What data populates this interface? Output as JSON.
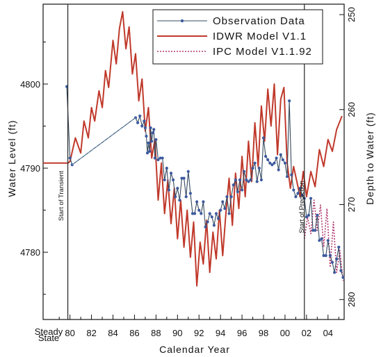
{
  "chart_data": {
    "type": "line",
    "xlabel": "Calendar Year",
    "ylabel": "Water Level (ft)",
    "y2label": "Depth to Water (ft)",
    "xlim": [
      1977.5,
      2005.5
    ],
    "ylim": [
      4772,
      4809.5
    ],
    "y2lim": [
      282.1,
      248.9
    ],
    "x_ticks": [
      {
        "value": 1977.5,
        "label": "Steady\nState"
      },
      {
        "value": 1980,
        "label": "80"
      },
      {
        "value": 1982,
        "label": "82"
      },
      {
        "value": 1984,
        "label": "84"
      },
      {
        "value": 1986,
        "label": "86"
      },
      {
        "value": 1988,
        "label": "88"
      },
      {
        "value": 1990,
        "label": "90"
      },
      {
        "value": 1992,
        "label": "92"
      },
      {
        "value": 1994,
        "label": "94"
      },
      {
        "value": 1996,
        "label": "96"
      },
      {
        "value": 1998,
        "label": "98"
      },
      {
        "value": 2000,
        "label": "00"
      },
      {
        "value": 2002,
        "label": "02"
      },
      {
        "value": 2004,
        "label": "04"
      }
    ],
    "y_ticks": [
      4780,
      4790,
      4800
    ],
    "y2_ticks": [
      250,
      260,
      270,
      280
    ],
    "annotations": [
      "Start of Transient",
      "Start of Prediction"
    ],
    "vertical_lines": [
      1979.8,
      2001.8
    ],
    "legend_position": "top-right",
    "series": [
      {
        "name": "IDWR Model V1.1",
        "color": "#c0392b",
        "style": "solid",
        "x": [
          1977.5,
          1979.8,
          1980.0,
          1980.5,
          1981.0,
          1981.3,
          1981.7,
          1982.0,
          1982.3,
          1982.7,
          1983.0,
          1983.3,
          1983.6,
          1984.0,
          1984.3,
          1984.6,
          1984.9,
          1985.2,
          1985.5,
          1985.8,
          1986.1,
          1986.4,
          1986.7,
          1987.0,
          1987.3,
          1987.6,
          1987.9,
          1988.2,
          1988.5,
          1988.8,
          1989.1,
          1989.4,
          1989.7,
          1990.0,
          1990.3,
          1990.6,
          1990.9,
          1991.2,
          1991.5,
          1991.8,
          1992.1,
          1992.4,
          1992.7,
          1993.0,
          1993.3,
          1993.6,
          1993.9,
          1994.2,
          1994.5,
          1994.8,
          1995.1,
          1995.4,
          1995.7,
          1996.0,
          1996.3,
          1996.6,
          1996.9,
          1997.2,
          1997.5,
          1997.8,
          1998.1,
          1998.4,
          1998.7,
          1999.0,
          1999.3,
          1999.6,
          1999.9,
          2000.2,
          2000.5,
          2000.8,
          2001.1,
          2001.4,
          2001.7,
          2002.0,
          2002.4,
          2002.8,
          2003.2,
          2003.6,
          2004.0,
          2004.4,
          2004.8,
          2005.3
        ],
        "y": [
          4790.6,
          4790.6,
          4790.8,
          4793.6,
          4791.8,
          4795.6,
          4793.6,
          4797.2,
          4795.6,
          4799.2,
          4797.2,
          4801.6,
          4799.6,
          4805.2,
          4802.4,
          4806.6,
          4808.6,
          4804.2,
          4806.8,
          4801.2,
          4803.6,
          4798.0,
          4800.6,
          4794.4,
          4797.2,
          4791.2,
          4793.4,
          4786.2,
          4790.6,
          4784.6,
          4788.6,
          4783.4,
          4787.6,
          4781.6,
          4786.2,
          4780.6,
          4785.0,
          4779.4,
          4783.6,
          4776.0,
          4781.2,
          4778.6,
          4783.8,
          4777.6,
          4782.4,
          4779.2,
          4785.0,
          4779.6,
          4784.6,
          4788.8,
          4783.2,
          4789.4,
          4785.2,
          4791.4,
          4786.6,
          4793.2,
          4788.4,
          4795.4,
          4790.2,
          4797.4,
          4793.2,
          4799.4,
          4795.0,
          4800.0,
          4791.6,
          4798.2,
          4799.6,
          4790.6,
          4787.6,
          4790.2,
          4788.4,
          4786.6,
          4789.6,
          4786.6,
          4789.6,
          4787.8,
          4792.2,
          4790.2,
          4793.4,
          4792.0,
          4794.6,
          4796.2
        ]
      },
      {
        "name": "IPC Model V1.1.92",
        "color": "#b03a6e",
        "style": "dotted",
        "x": [
          2001.8,
          2002.1,
          2002.4,
          2002.7,
          2003.0,
          2003.3,
          2003.6,
          2003.9,
          2004.2,
          2004.5,
          2004.8,
          2005.1,
          2005.4
        ],
        "y": [
          4781.6,
          4784.2,
          4782.2,
          4786.2,
          4782.6,
          4785.6,
          4780.6,
          4785.2,
          4778.2,
          4783.6,
          4777.6,
          4780.2,
          4776.6
        ]
      },
      {
        "name": "Observation Data",
        "color": "#34495e",
        "style": "line-markers",
        "x": [
          1979.7,
          1980.0,
          1980.2,
          1986.1,
          1986.3,
          1986.5,
          1986.7,
          1986.9,
          1987.0,
          1987.1,
          1987.2,
          1987.3,
          1987.4,
          1987.5,
          1987.6,
          1987.7,
          1987.8,
          1987.9,
          1988.0,
          1988.2,
          1988.4,
          1988.6,
          1988.8,
          1989.0,
          1989.2,
          1989.4,
          1989.6,
          1989.8,
          1990.0,
          1990.2,
          1990.4,
          1990.6,
          1990.8,
          1991.0,
          1991.2,
          1991.4,
          1991.6,
          1991.8,
          1992.0,
          1992.2,
          1992.4,
          1992.6,
          1992.8,
          1993.0,
          1993.2,
          1993.4,
          1993.6,
          1993.8,
          1994.0,
          1994.2,
          1994.4,
          1994.6,
          1994.8,
          1995.0,
          1995.2,
          1995.4,
          1995.6,
          1995.8,
          1996.0,
          1996.2,
          1996.4,
          1996.6,
          1996.8,
          1997.0,
          1997.2,
          1997.4,
          1997.6,
          1997.8,
          1998.0,
          1998.2,
          1998.4,
          1998.6,
          1998.8,
          1999.0,
          1999.2,
          1999.4,
          1999.6,
          1999.8,
          2000.0,
          2000.2,
          2000.4,
          2000.6,
          2000.8,
          2001.0,
          2001.2,
          2001.4,
          2001.6,
          2001.8,
          2002.0,
          2002.2,
          2002.4,
          2002.6,
          2002.8,
          2003.0,
          2003.2,
          2003.4,
          2003.6,
          2003.8,
          2004.0,
          2004.2,
          2004.4,
          2004.6,
          2004.8,
          2005.0,
          2005.2,
          2005.4
        ],
        "y": [
          4799.7,
          4791.2,
          4790.4,
          4796.0,
          4795.4,
          4796.2,
          4795.0,
          4795.6,
          4794.8,
          4793.8,
          4791.8,
          4793.0,
          4792.0,
          4794.8,
          4793.2,
          4794.2,
          4794.6,
          4791.2,
          4793.4,
          4791.0,
          4791.2,
          4791.2,
          4788.6,
          4790.0,
          4787.4,
          4789.4,
          4788.6,
          4786.6,
          4787.6,
          4786.2,
          4788.8,
          4788.8,
          4786.6,
          4789.6,
          4787.0,
          4784.6,
          4784.6,
          4786.0,
          4785.0,
          4784.6,
          4786.0,
          4783.0,
          4783.6,
          4784.6,
          4784.2,
          4783.2,
          4784.6,
          4784.0,
          4785.0,
          4786.0,
          4785.2,
          4786.6,
          4784.6,
          4786.6,
          4788.0,
          4788.6,
          4787.2,
          4788.6,
          4787.4,
          4789.6,
          4788.6,
          4788.4,
          4788.6,
          4790.0,
          4790.6,
          4788.4,
          4790.0,
          4788.6,
          4793.6,
          4791.4,
          4791.0,
          4790.6,
          4790.4,
          4790.6,
          4791.2,
          4789.8,
          4791.6,
          4791.0,
          4790.6,
          4789.0,
          4798.0,
          4789.2,
          4787.4,
          4786.6,
          4787.0,
          4787.6,
          4786.8,
          4786.4,
          4784.2,
          4784.4,
          4786.4,
          4782.6,
          4782.6,
          4784.4,
          4781.4,
          4781.6,
          4779.6,
          4779.6,
          4781.4,
          4779.6,
          4778.8,
          4777.6,
          4779.2,
          4780.6,
          4777.8,
          4777.0
        ]
      }
    ]
  }
}
